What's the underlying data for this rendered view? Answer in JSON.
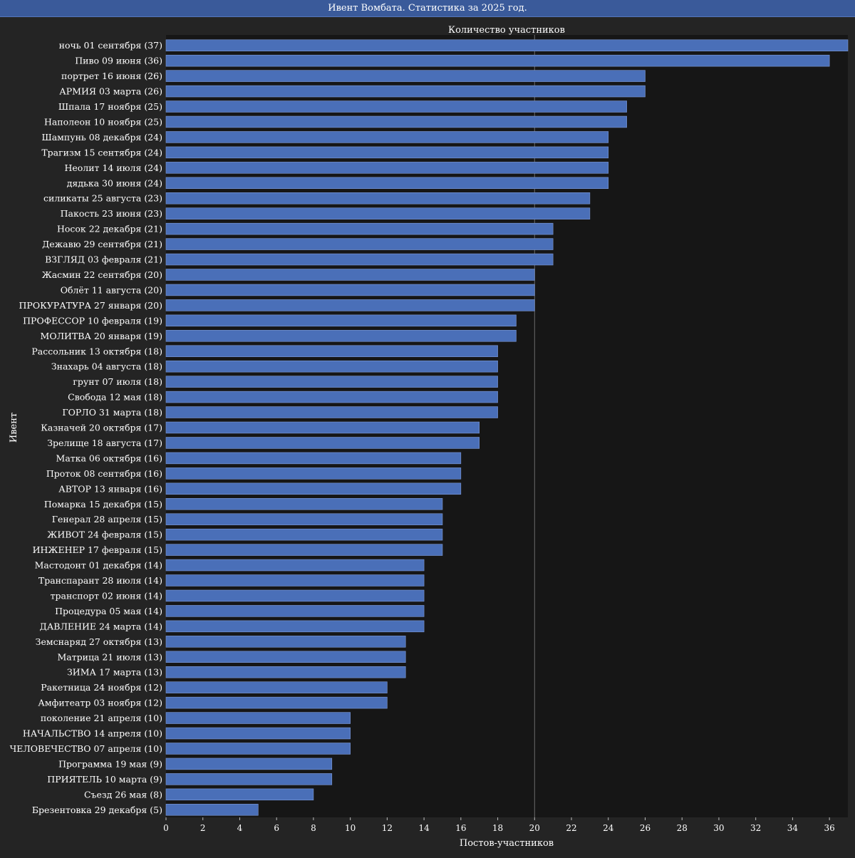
{
  "window": {
    "title": "Ивент Вомбата. Статистика за 2025 год."
  },
  "chart_data": {
    "type": "bar",
    "orientation": "horizontal",
    "title": "Количество участников",
    "xlabel": "Постов-участников",
    "ylabel": "Ивент",
    "xlim": [
      0,
      37
    ],
    "xticks": [
      0,
      2,
      4,
      6,
      8,
      10,
      12,
      14,
      16,
      18,
      20,
      22,
      24,
      26,
      28,
      30,
      32,
      34,
      36
    ],
    "reference_line": 20,
    "bar_color": "#4a6fb8",
    "categories": [
      "ночь 01 сентября (37)",
      "Пиво 09 июня (36)",
      "портрет 16 июня (26)",
      "АРМИЯ 03 марта (26)",
      "Шпала 17 ноября (25)",
      "Наполеон 10 ноября (25)",
      "Шампунь 08 декабря (24)",
      "Трагизм 15 сентября (24)",
      "Неолит 14 июля (24)",
      "дядька 30 июня (24)",
      "силикаты 25 августа (23)",
      "Пакость 23 июня (23)",
      "Носок 22 декабря (21)",
      "Дежавю 29 сентября (21)",
      "ВЗГЛЯД 03 февраля (21)",
      "Жасмин 22 сентября (20)",
      "Облёт 11 августа (20)",
      "ПРОКУРАТУРА 27 января (20)",
      "ПРОФЕССОР 10 февраля (19)",
      "МОЛИТВА 20 января (19)",
      "Рассольник 13 октября (18)",
      "Знахарь 04 августа (18)",
      "грунт 07 июля (18)",
      "Свобода 12 мая (18)",
      "ГОРЛО 31 марта (18)",
      "Казначей 20 октября (17)",
      "Зрелище 18 августа (17)",
      "Матка 06 октября (16)",
      "Проток 08 сентября (16)",
      "АВТОР 13 января (16)",
      "Помарка 15 декабря (15)",
      "Генерал 28 апреля (15)",
      "ЖИВОТ 24 февраля (15)",
      "ИНЖЕНЕР 17 февраля (15)",
      "Мастодонт 01 декабря (14)",
      "Транспарант 28 июля (14)",
      "транспорт 02 июня (14)",
      "Процедура 05 мая (14)",
      "ДАВЛЕНИЕ 24 марта (14)",
      "Земснаряд 27 октября (13)",
      "Матрица 21 июля (13)",
      "ЗИМА 17 марта (13)",
      "Ракетница 24 ноября (12)",
      "Амфитеатр 03 ноября (12)",
      "поколение 21 апреля (10)",
      "НАЧАЛЬСТВО 14 апреля (10)",
      "ЧЕЛОВЕЧЕСТВО 07 апреля (10)",
      "Программа 19 мая (9)",
      "ПРИЯТЕЛЬ 10 марта (9)",
      "Съезд 26 мая (8)",
      "Брезентовка 29 декабря (5)"
    ],
    "values": [
      37,
      36,
      26,
      26,
      25,
      25,
      24,
      24,
      24,
      24,
      23,
      23,
      21,
      21,
      21,
      20,
      20,
      20,
      19,
      19,
      18,
      18,
      18,
      18,
      18,
      17,
      17,
      16,
      16,
      16,
      15,
      15,
      15,
      15,
      14,
      14,
      14,
      14,
      14,
      13,
      13,
      13,
      12,
      12,
      10,
      10,
      10,
      9,
      9,
      8,
      5
    ]
  }
}
